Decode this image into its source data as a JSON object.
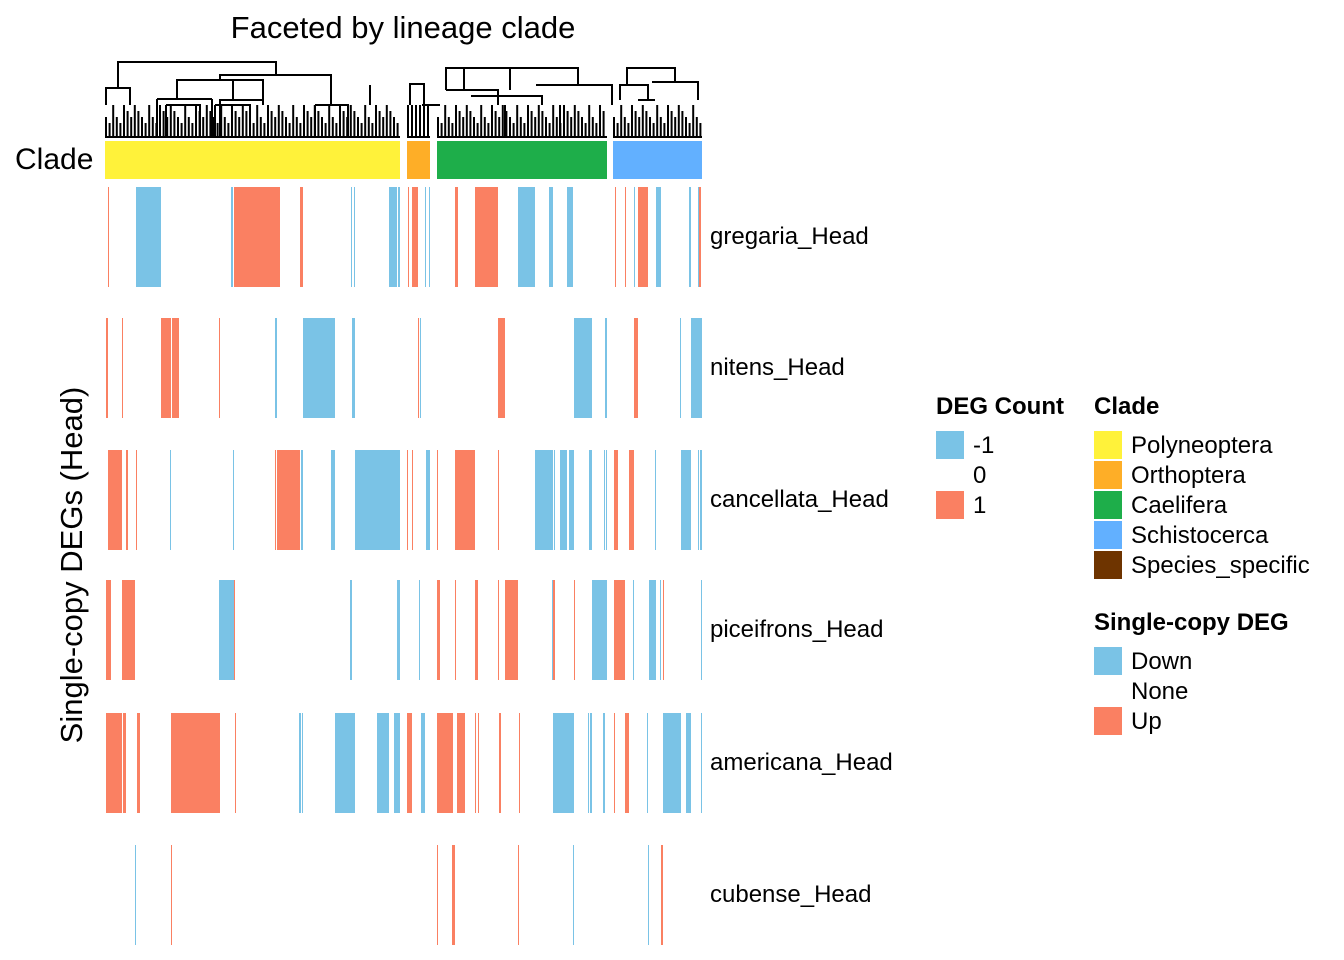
{
  "chart_data": {
    "type": "heatmap",
    "title": "Faceted by lineage clade",
    "ylabel": "Single-copy DEGs (Head)",
    "annotation_label": "Clade",
    "clade_groups": [
      {
        "name": "Polyneoptera",
        "color": "#FFF23A"
      },
      {
        "name": "Orthoptera",
        "color": "#FEAE27"
      },
      {
        "name": "Caelifera",
        "color": "#1EAE4A"
      },
      {
        "name": "Schistocerca",
        "color": "#62B0FF"
      }
    ],
    "value_colors": {
      "-1": "#7AC3E6",
      "0": "#FFFFFF",
      "1": "#FA8062"
    },
    "rows": [
      {
        "label": "gregaria_Head",
        "runs": [
          [
            [
              3,
              4,
              1
            ],
            [
              31,
              56,
              -1
            ],
            [
              126,
              128,
              -1
            ],
            [
              129,
              175,
              1
            ],
            [
              195,
              198,
              1
            ],
            [
              246,
              247,
              -1
            ],
            [
              249,
              250,
              -1
            ],
            [
              284,
              292,
              -1
            ],
            [
              293,
              295,
              -1
            ]
          ],
          [
            [
              1,
              2,
              1
            ],
            [
              5,
              11,
              1
            ],
            [
              18,
              19,
              -1
            ],
            [
              22,
              23,
              -1
            ]
          ],
          [
            [
              18,
              21,
              1
            ],
            [
              38,
              61,
              1
            ],
            [
              81,
              98,
              -1
            ],
            [
              112,
              116,
              -1
            ],
            [
              130,
              136,
              -1
            ]
          ],
          [
            [
              2,
              3,
              1
            ],
            [
              12,
              13,
              1
            ],
            [
              21,
              22,
              -1
            ],
            [
              25,
              35,
              1
            ],
            [
              43,
              48,
              -1
            ],
            [
              76,
              78,
              -1
            ],
            [
              85,
              86,
              -1
            ],
            [
              86,
              88,
              1
            ]
          ]
        ]
      },
      {
        "label": "nitens_Head",
        "runs": [
          [
            [
              1,
              3,
              1
            ],
            [
              17,
              18,
              1
            ],
            [
              56,
              66,
              1
            ],
            [
              67,
              74,
              1
            ],
            [
              114,
              115,
              1
            ],
            [
              170,
              172,
              -1
            ],
            [
              198,
              230,
              -1
            ],
            [
              247,
              250,
              -1
            ]
          ],
          [
            [
              11,
              12,
              1
            ],
            [
              13,
              14,
              -1
            ]
          ],
          [
            [
              61,
              68,
              1
            ],
            [
              137,
              155,
              -1
            ],
            [
              168,
              170,
              -1
            ]
          ],
          [
            [
              21,
              25,
              1
            ],
            [
              67,
              68,
              -1
            ],
            [
              78,
              89,
              -1
            ]
          ]
        ]
      },
      {
        "label": "cancellata_Head",
        "runs": [
          [
            [
              3,
              17,
              1
            ],
            [
              21,
              23,
              1
            ],
            [
              31,
              32,
              1
            ],
            [
              65,
              66,
              -1
            ],
            [
              128,
              129,
              -1
            ],
            [
              170,
              171,
              1
            ],
            [
              172,
              195,
              1
            ],
            [
              196,
              198,
              -1
            ],
            [
              226,
              230,
              -1
            ],
            [
              250,
              295,
              -1
            ]
          ],
          [
            [
              0,
              1,
              1
            ],
            [
              5,
              6,
              1
            ],
            [
              19,
              23,
              -1
            ]
          ],
          [
            [
              0,
              1,
              1
            ],
            [
              18,
              38,
              1
            ],
            [
              61,
              62,
              1
            ],
            [
              98,
              116,
              -1
            ],
            [
              117,
              118,
              -1
            ],
            [
              123,
              130,
              -1
            ],
            [
              132,
              137,
              -1
            ],
            [
              152,
              155,
              -1
            ],
            [
              167,
              168,
              -1
            ],
            [
              169,
              170,
              -1
            ]
          ],
          [
            [
              1,
              3,
              1
            ],
            [
              3,
              5,
              1
            ],
            [
              16,
              21,
              1
            ],
            [
              42,
              43,
              -1
            ],
            [
              68,
              78,
              -1
            ],
            [
              85,
              86,
              -1
            ],
            [
              87,
              89,
              -1
            ]
          ]
        ]
      },
      {
        "label": "piceifrons_Head",
        "runs": [
          [
            [
              1,
              6,
              1
            ],
            [
              17,
              30,
              1
            ],
            [
              114,
              129,
              -1
            ],
            [
              129,
              130,
              1
            ],
            [
              245,
              247,
              -1
            ],
            [
              292,
              295,
              -1
            ]
          ],
          [
            [
              12,
              13,
              -1
            ]
          ],
          [
            [
              0,
              3,
              1
            ],
            [
              18,
              19,
              1
            ],
            [
              38,
              41,
              1
            ],
            [
              61,
              62,
              1
            ],
            [
              68,
              81,
              1
            ],
            [
              115,
              116,
              -1
            ],
            [
              116,
              118,
              1
            ],
            [
              137,
              138,
              1
            ],
            [
              155,
              169,
              -1
            ],
            [
              169,
              170,
              -1
            ]
          ],
          [
            [
              1,
              12,
              1
            ],
            [
              20,
              21,
              -1
            ],
            [
              36,
              43,
              -1
            ],
            [
              47,
              48,
              -1
            ],
            [
              50,
              51,
              1
            ],
            [
              88,
              89,
              -1
            ]
          ]
        ]
      },
      {
        "label": "americana_Head",
        "runs": [
          [
            [
              1,
              17,
              1
            ],
            [
              18,
              21,
              1
            ],
            [
              32,
              35,
              1
            ],
            [
              66,
              115,
              1
            ],
            [
              130,
              131,
              1
            ],
            [
              194,
              196,
              -1
            ],
            [
              197,
              198,
              -1
            ],
            [
              230,
              250,
              -1
            ],
            [
              272,
              284,
              -1
            ],
            [
              289,
              295,
              -1
            ]
          ],
          [
            [
              0,
              5,
              1
            ],
            [
              14,
              18,
              -1
            ]
          ],
          [
            [
              0,
              16,
              1
            ],
            [
              20,
              28,
              1
            ],
            [
              38,
              39,
              1
            ],
            [
              41,
              42,
              1
            ],
            [
              62,
              64,
              1
            ],
            [
              82,
              83,
              1
            ],
            [
              116,
              137,
              -1
            ],
            [
              151,
              152,
              -1
            ],
            [
              153,
              155,
              -1
            ],
            [
              166,
              168,
              -1
            ]
          ],
          [
            [
              1,
              2,
              1
            ],
            [
              12,
              16,
              1
            ],
            [
              34,
              35,
              -1
            ],
            [
              50,
              68,
              -1
            ],
            [
              73,
              78,
              -1
            ],
            [
              88,
              89,
              -1
            ]
          ]
        ]
      },
      {
        "label": "cubense_Head",
        "runs": [
          [
            [
              30,
              31,
              -1
            ],
            [
              66,
              67,
              1
            ]
          ],
          [],
          [
            [
              0,
              1,
              1
            ],
            [
              15,
              18,
              1
            ],
            [
              81,
              82,
              1
            ],
            [
              136,
              137,
              -1
            ]
          ],
          [
            [
              35,
              36,
              -1
            ],
            [
              48,
              50,
              1
            ]
          ]
        ]
      }
    ]
  },
  "legends": {
    "deg_count": {
      "title": "DEG Count",
      "items": [
        {
          "label": "-1",
          "color": "#7AC3E6"
        },
        {
          "label": "0",
          "color": "#FFFFFF"
        },
        {
          "label": "1",
          "color": "#FA8062"
        }
      ]
    },
    "clade": {
      "title": "Clade",
      "items": [
        {
          "label": "Polyneoptera",
          "color": "#FFF23A"
        },
        {
          "label": "Orthoptera",
          "color": "#FEAE27"
        },
        {
          "label": "Caelifera",
          "color": "#1EAE4A"
        },
        {
          "label": "Schistocerca",
          "color": "#62B0FF"
        },
        {
          "label": "Species_specific",
          "color": "#6E3400"
        }
      ]
    },
    "single_copy": {
      "title": "Single-copy DEG",
      "items": [
        {
          "label": "Down",
          "color": "#7AC3E6"
        },
        {
          "label": "None",
          "color": "#FFFFFF"
        },
        {
          "label": "Up",
          "color": "#FA8062"
        }
      ]
    }
  }
}
